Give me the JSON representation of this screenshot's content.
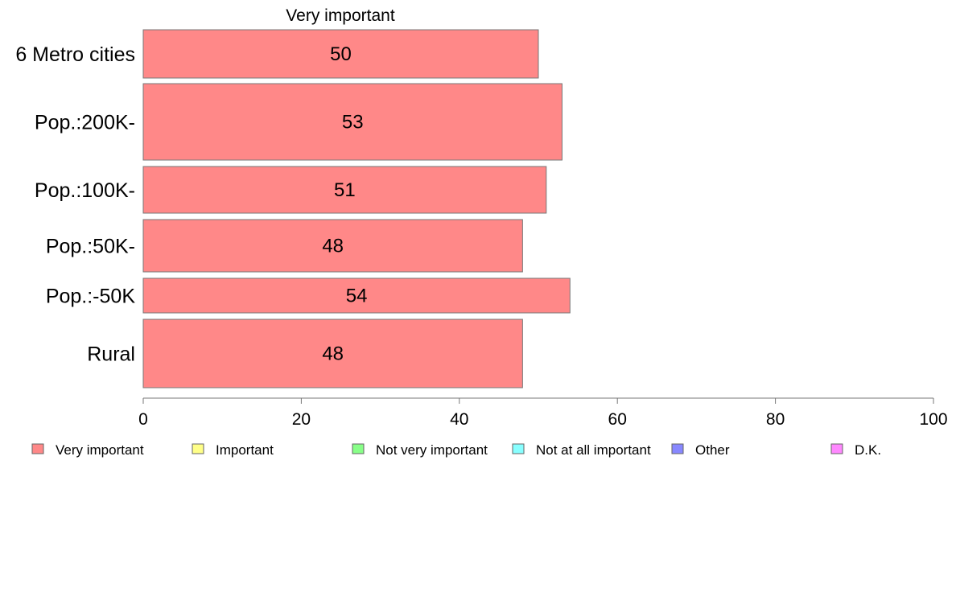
{
  "chart_data": {
    "type": "bar",
    "orientation": "horizontal",
    "title": "Very important",
    "categories": [
      "6 Metro cities",
      "Pop.:200K-",
      "Pop.:100K-",
      "Pop.:50K-",
      "Pop.:-50K",
      "Rural"
    ],
    "series": [
      {
        "name": "Very important",
        "color": "#ff8888",
        "values": [
          50,
          53,
          51,
          48,
          54,
          48
        ]
      }
    ],
    "xlim": [
      0,
      100
    ],
    "xticks": [
      "0",
      "20",
      "40",
      "60",
      "80",
      "100"
    ],
    "xlabel": "",
    "ylabel": "",
    "grid": false,
    "legend": {
      "position": "bottom",
      "entries": [
        {
          "label": "Very important",
          "color": "#ff8888"
        },
        {
          "label": "Important",
          "color": "#ffff88"
        },
        {
          "label": "Not very important",
          "color": "#88ff88"
        },
        {
          "label": "Not at all important",
          "color": "#88ffff"
        },
        {
          "label": "Other",
          "color": "#8888ff"
        },
        {
          "label": "D.K.",
          "color": "#ff88ff"
        }
      ]
    }
  }
}
